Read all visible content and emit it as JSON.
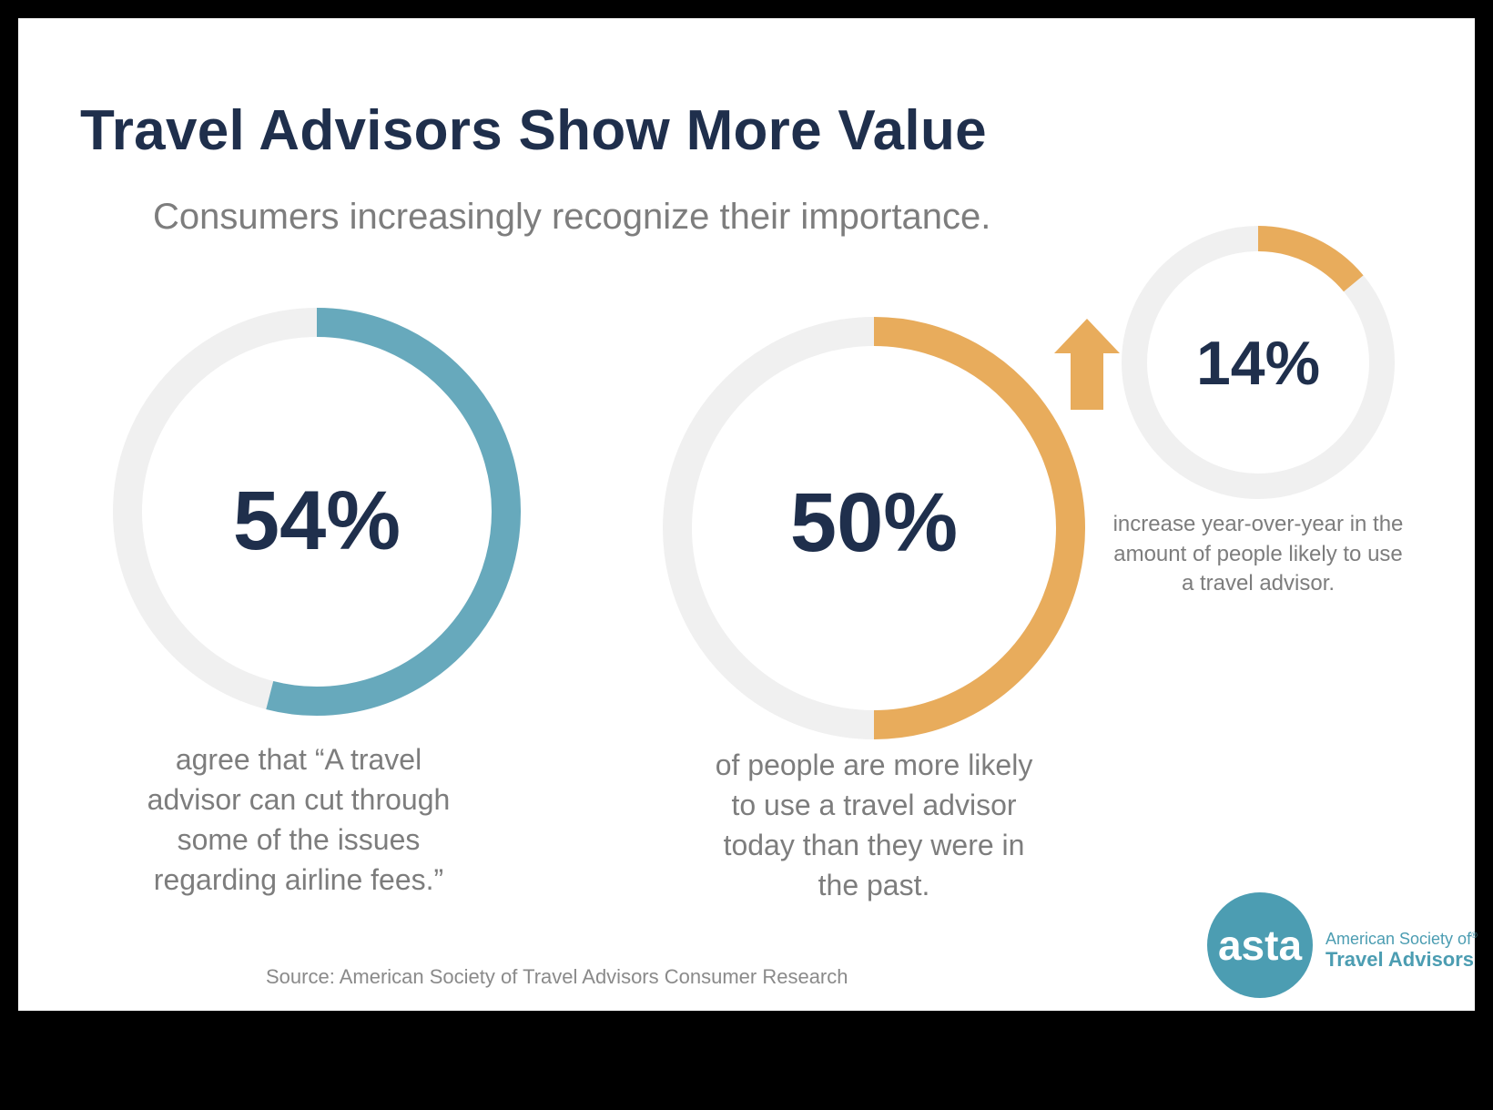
{
  "header": {
    "title": "Travel Advisors Show More Value",
    "subtitle": "Consumers increasingly recognize their importance."
  },
  "colors": {
    "navy": "#1f2f4c",
    "teal": "#67a9bc",
    "orange": "#e8ac5c",
    "track": "#f0f0f0",
    "caption_gray": "#7d7d7d"
  },
  "chart_data": [
    {
      "type": "pie",
      "variant": "donut",
      "value": 54,
      "max": 100,
      "label": "54%",
      "caption": "agree that “A travel advisor can cut through some of the issues regarding airline fees.”",
      "color": "#67a9bc"
    },
    {
      "type": "pie",
      "variant": "donut",
      "value": 50,
      "max": 100,
      "label": "50%",
      "caption": "of people are more likely to use a travel advisor today than they were in the past.",
      "color": "#e8ac5c"
    },
    {
      "type": "pie",
      "variant": "donut",
      "value": 14,
      "max": 100,
      "label": "14%",
      "caption": "increase year-over-year in the amount of people likely to use a travel advisor.",
      "color": "#e8ac5c",
      "indicator": "arrow-up-icon"
    }
  ],
  "footer": {
    "source": "Source: American Society of Travel Advisors Consumer Research"
  },
  "logo": {
    "mark": "asta",
    "line1": "American Society of",
    "line2": "Travel Advisors",
    "registered": "®",
    "color": "#4c9db2"
  }
}
